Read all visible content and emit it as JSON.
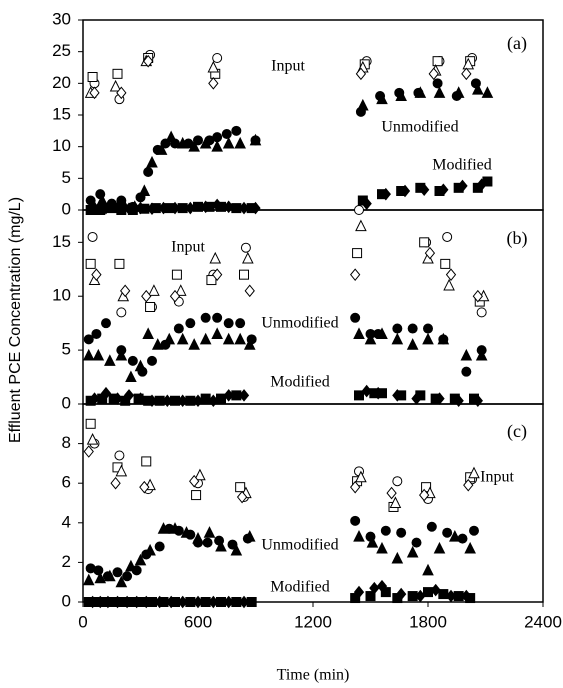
{
  "xlabel": "Time (min)",
  "ylabel": "Effluent PCE Concentration (mg/L)",
  "chart_data": [
    {
      "type": "scatter",
      "label": "(a)",
      "annotations": [
        "Input",
        "Unmodified",
        "Modified"
      ],
      "xlim": [
        0,
        2400
      ],
      "ylim": [
        0,
        30
      ],
      "yticks": [
        0,
        5,
        10,
        15,
        20,
        25,
        30
      ],
      "series": [
        {
          "marker": "circle",
          "filled": false,
          "color": "#000000",
          "x": [
            60,
            190,
            350,
            700,
            1480,
            1860,
            2030
          ],
          "values": [
            20,
            17.5,
            24.5,
            24,
            23.5,
            23.5,
            24
          ]
        },
        {
          "marker": "square",
          "filled": false,
          "color": "#000000",
          "x": [
            50,
            180,
            340,
            690,
            1470,
            1850,
            2020
          ],
          "values": [
            21,
            21.5,
            24,
            21.5,
            23,
            23.5,
            23.5
          ]
        },
        {
          "marker": "triangle",
          "filled": false,
          "color": "#000000",
          "x": [
            40,
            170,
            330,
            680,
            1460,
            1840,
            2010
          ],
          "values": [
            18.5,
            19.5,
            23.5,
            22.5,
            22.5,
            22,
            23
          ]
        },
        {
          "marker": "diamond",
          "filled": false,
          "color": "#000000",
          "x": [
            60,
            200,
            340,
            680,
            1450,
            1830,
            2000
          ],
          "values": [
            18.5,
            18.5,
            23.5,
            20,
            21.5,
            21.5,
            21.5
          ]
        },
        {
          "marker": "circle",
          "filled": true,
          "color": "#000000",
          "x": [
            40,
            90,
            150,
            200,
            260,
            300,
            340,
            390,
            430,
            480,
            550,
            600,
            660,
            700,
            750,
            800,
            900,
            1450,
            1550,
            1650,
            1750,
            1850,
            1950,
            2050
          ],
          "values": [
            1.5,
            2.5,
            1,
            1.5,
            0.5,
            2,
            6,
            9.5,
            10.5,
            10.5,
            10.5,
            11,
            11,
            11.5,
            12,
            12.5,
            11,
            15.5,
            18,
            18.5,
            18.5,
            20,
            18,
            20
          ]
        },
        {
          "marker": "triangle",
          "filled": true,
          "color": "#000000",
          "x": [
            50,
            100,
            160,
            210,
            270,
            320,
            360,
            410,
            460,
            520,
            580,
            640,
            700,
            760,
            820,
            900,
            1460,
            1560,
            1660,
            1760,
            1860,
            1960,
            2060,
            2110
          ],
          "values": [
            1,
            1.5,
            0.5,
            1,
            0.5,
            3,
            7.5,
            9.5,
            11.5,
            10.5,
            10,
            10.5,
            10,
            10.5,
            10.5,
            11,
            16.5,
            17.5,
            18,
            18.5,
            18.5,
            18.5,
            19,
            18.5
          ]
        },
        {
          "marker": "square",
          "filled": true,
          "color": "#000000",
          "x": [
            40,
            90,
            150,
            200,
            260,
            320,
            380,
            450,
            520,
            600,
            660,
            720,
            800,
            880,
            1460,
            1560,
            1660,
            1760,
            1860,
            1960,
            2060,
            2110
          ],
          "values": [
            0,
            0,
            0.3,
            0,
            0,
            0.2,
            0.3,
            0.3,
            0.3,
            0.5,
            0.5,
            0.5,
            0.3,
            0.3,
            1.5,
            2.5,
            3,
            3.5,
            3,
            3.5,
            3.5,
            4.5
          ]
        },
        {
          "marker": "diamond",
          "filled": true,
          "color": "#000000",
          "x": [
            60,
            120,
            180,
            240,
            300,
            360,
            420,
            480,
            560,
            640,
            700,
            760,
            840,
            900,
            1480,
            1580,
            1680,
            1780,
            1880,
            1980,
            2080
          ],
          "values": [
            0.3,
            0.3,
            0.3,
            0.2,
            0.3,
            0.2,
            0.3,
            0.3,
            0.3,
            0.5,
            0.8,
            0.5,
            0.3,
            0.3,
            1,
            2.5,
            3,
            3.2,
            3.2,
            3.8,
            4
          ]
        }
      ]
    },
    {
      "type": "scatter",
      "label": "(b)",
      "annotations": [
        "Input",
        "Unmodified",
        "Modified"
      ],
      "xlim": [
        0,
        2400
      ],
      "ylim": [
        0,
        18
      ],
      "yticks": [
        0,
        5,
        10,
        15
      ],
      "series": [
        {
          "marker": "circle",
          "filled": false,
          "color": "#000000",
          "x": [
            50,
            200,
            360,
            500,
            680,
            850,
            1440,
            1790,
            1900,
            2080
          ],
          "values": [
            15.5,
            8.5,
            9,
            9.5,
            12,
            14.5,
            18,
            15,
            15.5,
            8.5
          ]
        },
        {
          "marker": "square",
          "filled": false,
          "color": "#000000",
          "x": [
            40,
            190,
            350,
            490,
            670,
            840,
            1430,
            1780,
            1890,
            2070
          ],
          "values": [
            13,
            13,
            9,
            12,
            11.5,
            12,
            14,
            15,
            13,
            9.5
          ]
        },
        {
          "marker": "triangle",
          "filled": false,
          "color": "#000000",
          "x": [
            60,
            210,
            370,
            510,
            690,
            860,
            1450,
            1800,
            1910,
            2090
          ],
          "values": [
            11.5,
            10,
            10.5,
            10.5,
            13.5,
            13.5,
            16.5,
            13.5,
            11,
            10
          ]
        },
        {
          "marker": "diamond",
          "filled": false,
          "color": "#000000",
          "x": [
            70,
            220,
            330,
            480,
            700,
            870,
            1420,
            1810,
            1920,
            2060
          ],
          "values": [
            12,
            10.5,
            10,
            10,
            12,
            10.5,
            12,
            14,
            12,
            10
          ]
        },
        {
          "marker": "circle",
          "filled": true,
          "color": "#000000",
          "x": [
            30,
            70,
            120,
            200,
            260,
            310,
            360,
            430,
            500,
            560,
            640,
            700,
            760,
            820,
            880,
            1420,
            1500,
            1540,
            1640,
            1720,
            1800,
            1880,
            2000,
            2080
          ],
          "values": [
            6,
            6.5,
            7.5,
            5,
            4,
            3,
            4,
            5.5,
            7,
            7.5,
            8,
            8,
            7.5,
            7.5,
            6,
            8,
            6.5,
            6.5,
            7,
            7,
            7,
            6,
            3,
            5
          ]
        },
        {
          "marker": "triangle",
          "filled": true,
          "color": "#000000",
          "x": [
            30,
            80,
            140,
            200,
            250,
            300,
            340,
            390,
            450,
            520,
            580,
            640,
            700,
            760,
            820,
            870,
            1440,
            1500,
            1560,
            1640,
            1720,
            1800,
            1880,
            2000,
            2080
          ],
          "values": [
            4.5,
            4.5,
            4,
            4.5,
            2.5,
            3.5,
            6.5,
            5.5,
            6,
            6,
            5.5,
            6,
            6.5,
            6,
            6,
            5.5,
            6.5,
            6,
            6.5,
            6,
            5.5,
            6,
            6,
            4.5,
            4.5
          ]
        },
        {
          "marker": "square",
          "filled": true,
          "color": "#000000",
          "x": [
            40,
            100,
            160,
            220,
            290,
            340,
            400,
            480,
            560,
            640,
            720,
            800,
            1440,
            1520,
            1560,
            1660,
            1760,
            1840,
            1940,
            2040
          ],
          "values": [
            0.3,
            0.5,
            0.5,
            0.3,
            0.5,
            0.3,
            0.3,
            0.3,
            0.3,
            0.5,
            0.5,
            0.8,
            0.8,
            1,
            1,
            0.8,
            0.8,
            0.5,
            0.5,
            0.5
          ]
        },
        {
          "marker": "diamond",
          "filled": true,
          "color": "#000000",
          "x": [
            60,
            120,
            180,
            240,
            300,
            360,
            440,
            520,
            600,
            680,
            760,
            840,
            1480,
            1540,
            1640,
            1740,
            1860,
            1960,
            2060
          ],
          "values": [
            0.5,
            1,
            0.5,
            0.8,
            0.5,
            0.3,
            0.3,
            0.3,
            0.3,
            0.3,
            0.8,
            0.8,
            1.2,
            1,
            0.8,
            0.5,
            0.5,
            0.3,
            0.3
          ]
        }
      ]
    },
    {
      "type": "scatter",
      "label": "(c)",
      "annotations": [
        "Input",
        "Unmodified",
        "Modified"
      ],
      "xlim": [
        0,
        2400
      ],
      "ylim": [
        0,
        10
      ],
      "yticks": [
        0,
        2,
        4,
        6,
        8
      ],
      "xticks": [
        0,
        600,
        1200,
        1800,
        2400
      ],
      "series": [
        {
          "marker": "circle",
          "filled": false,
          "color": "#000000",
          "x": [
            60,
            190,
            340,
            600,
            840,
            1440,
            1640,
            1800,
            2030
          ],
          "values": [
            8,
            7.4,
            5.7,
            6,
            5.3,
            6.6,
            6.1,
            5.2,
            6.2
          ]
        },
        {
          "marker": "square",
          "filled": false,
          "color": "#000000",
          "x": [
            40,
            180,
            330,
            590,
            820,
            1430,
            1620,
            1790,
            2020
          ],
          "values": [
            9,
            6.8,
            7.1,
            5.4,
            5.8,
            6.1,
            4.8,
            5.8,
            6.3
          ]
        },
        {
          "marker": "triangle",
          "filled": false,
          "color": "#000000",
          "x": [
            50,
            200,
            350,
            610,
            850,
            1450,
            1630,
            1810,
            2040
          ],
          "values": [
            8.2,
            6.6,
            5.9,
            6.4,
            5.5,
            6.3,
            5,
            5.5,
            6.5
          ]
        },
        {
          "marker": "diamond",
          "filled": false,
          "color": "#000000",
          "x": [
            30,
            170,
            320,
            580,
            830,
            1420,
            1610,
            1780,
            2010
          ],
          "values": [
            7.6,
            6,
            5.8,
            6.1,
            5.3,
            5.8,
            5.5,
            5.4,
            5.9
          ]
        },
        {
          "marker": "circle",
          "filled": true,
          "color": "#000000",
          "x": [
            40,
            80,
            130,
            180,
            230,
            280,
            330,
            400,
            450,
            500,
            560,
            600,
            650,
            710,
            780,
            860,
            1420,
            1500,
            1580,
            1660,
            1740,
            1820,
            1900,
            1980,
            2040
          ],
          "values": [
            1.7,
            1.6,
            1.3,
            1.5,
            1.3,
            1.6,
            2.4,
            2.8,
            3.7,
            3.6,
            3.4,
            3,
            3,
            3.1,
            2.9,
            3.2,
            4.1,
            3.3,
            3.6,
            3.5,
            3,
            3.8,
            3.5,
            3.2,
            3.6
          ]
        },
        {
          "marker": "triangle",
          "filled": true,
          "color": "#000000",
          "x": [
            30,
            90,
            140,
            200,
            250,
            300,
            350,
            420,
            480,
            540,
            600,
            660,
            720,
            800,
            870,
            1440,
            1510,
            1560,
            1640,
            1720,
            1800,
            1860,
            1940,
            2020
          ],
          "values": [
            1.1,
            1.2,
            1.3,
            1,
            1.8,
            2.1,
            2.6,
            3.7,
            3.7,
            3.5,
            3.2,
            3.5,
            2.8,
            2.6,
            3.3,
            3.3,
            3,
            2.7,
            2.2,
            2.5,
            1.6,
            2.7,
            3.3,
            2.7
          ]
        },
        {
          "marker": "square",
          "filled": true,
          "color": "#000000",
          "x": [
            30,
            70,
            110,
            150,
            200,
            250,
            300,
            360,
            420,
            480,
            560,
            640,
            720,
            800,
            880,
            1420,
            1500,
            1580,
            1640,
            1720,
            1800,
            1880,
            1960,
            2020
          ],
          "values": [
            0,
            0,
            0,
            0,
            0,
            0,
            0,
            0,
            0,
            0,
            0,
            0,
            0,
            0,
            0,
            0.2,
            0.3,
            0.5,
            0.2,
            0.3,
            0.5,
            0.4,
            0.3,
            0.2
          ]
        },
        {
          "marker": "diamond",
          "filled": true,
          "color": "#000000",
          "x": [
            50,
            90,
            130,
            180,
            230,
            280,
            330,
            400,
            460,
            520,
            600,
            680,
            760,
            840,
            1440,
            1520,
            1560,
            1660,
            1760,
            1840,
            1920,
            2000
          ],
          "values": [
            0,
            0,
            0,
            0,
            0,
            0,
            0,
            0,
            0,
            0,
            0,
            0,
            0,
            0,
            0.5,
            0.7,
            0.8,
            0.4,
            0.3,
            0.6,
            0.3,
            0.3
          ]
        }
      ]
    }
  ]
}
